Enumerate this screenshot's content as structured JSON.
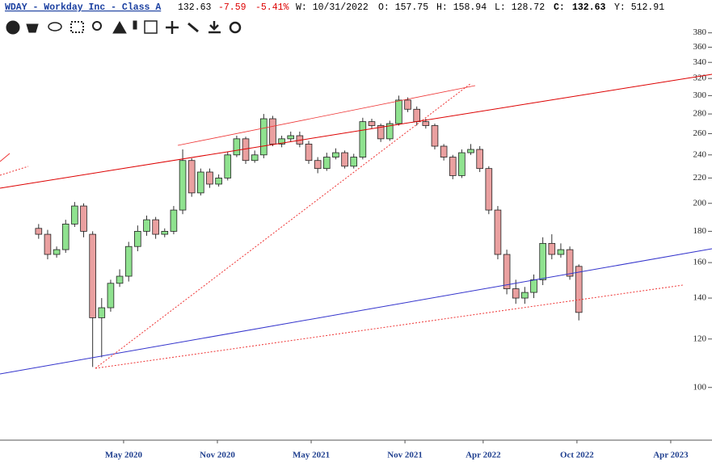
{
  "chart_data": {
    "type": "candlestick",
    "title": "WDAY - Workday Inc - Class A",
    "quote": {
      "last": "132.63",
      "change": "-7.59",
      "change_pct": "-5.41%",
      "week": "W: 10/31/2022",
      "open": "O: 157.75",
      "high": "H: 158.94",
      "low": "L: 128.72",
      "close_label": "C:",
      "close": "132.63",
      "extra": "Y: 512.91"
    },
    "log_scale": true,
    "up_color": "#8fe28f",
    "down_color": "#eaa0a0",
    "xlim": [
      2019.674,
      2023.47
    ],
    "ylim": [
      82,
      430
    ],
    "xticks": [
      {
        "value": 2020.333,
        "label": "May 2020"
      },
      {
        "value": 2020.833,
        "label": "Nov 2020"
      },
      {
        "value": 2021.333,
        "label": "May 2021"
      },
      {
        "value": 2021.833,
        "label": "Nov 2021"
      },
      {
        "value": 2022.25,
        "label": "Apr 2022"
      },
      {
        "value": 2022.75,
        "label": "Oct 2022"
      },
      {
        "value": 2023.25,
        "label": "Apr 2023"
      }
    ],
    "yticks": [
      100,
      120,
      140,
      160,
      180,
      200,
      220,
      240,
      260,
      280,
      300,
      320,
      340,
      360,
      380
    ],
    "x0": 2019.88,
    "x_step": 0.048,
    "open": [
      182,
      178,
      165,
      168,
      185,
      198,
      178,
      130,
      135,
      148,
      152,
      170,
      180,
      188,
      178,
      180,
      195,
      235,
      208,
      225,
      215,
      220,
      240,
      255,
      235,
      240,
      275,
      250,
      255,
      258,
      250,
      235,
      228,
      238,
      242,
      230,
      238,
      272,
      268,
      255,
      270,
      295,
      285,
      272,
      268,
      248,
      238,
      222,
      242,
      245,
      228,
      195,
      165,
      145,
      140,
      143,
      150,
      172,
      165,
      168,
      157.75
    ],
    "high": [
      185,
      181,
      170,
      188,
      201,
      200,
      180,
      140,
      150,
      156,
      173,
      184,
      191,
      190,
      182,
      198,
      245,
      237,
      228,
      228,
      223,
      243,
      258,
      257,
      244,
      280,
      278,
      258,
      262,
      262,
      253,
      238,
      242,
      246,
      244,
      241,
      276,
      275,
      270,
      273,
      300,
      298,
      288,
      275,
      270,
      250,
      240,
      245,
      250,
      248,
      230,
      198,
      168,
      150,
      146,
      153,
      176,
      178,
      172,
      170,
      158.94
    ],
    "low": [
      175,
      162,
      163,
      166,
      183,
      176,
      108,
      112,
      133,
      146,
      149,
      167,
      177,
      175,
      176,
      178,
      192,
      205,
      206,
      212,
      213,
      218,
      238,
      232,
      233,
      237,
      248,
      247,
      252,
      247,
      232,
      224,
      226,
      236,
      228,
      228,
      236,
      265,
      252,
      253,
      268,
      282,
      268,
      265,
      245,
      235,
      219,
      220,
      240,
      225,
      192,
      162,
      142,
      137,
      137,
      140,
      147,
      162,
      163,
      150,
      128.72
    ],
    "close": [
      178,
      165,
      168,
      185,
      198,
      180,
      130,
      135,
      148,
      152,
      170,
      180,
      188,
      178,
      180,
      195,
      235,
      208,
      225,
      215,
      220,
      240,
      255,
      235,
      240,
      275,
      250,
      255,
      258,
      250,
      235,
      228,
      238,
      242,
      230,
      238,
      272,
      268,
      255,
      270,
      295,
      285,
      272,
      268,
      248,
      238,
      222,
      242,
      245,
      228,
      195,
      165,
      145,
      140,
      143,
      150,
      172,
      165,
      168,
      152,
      132.63
    ]
  }
}
